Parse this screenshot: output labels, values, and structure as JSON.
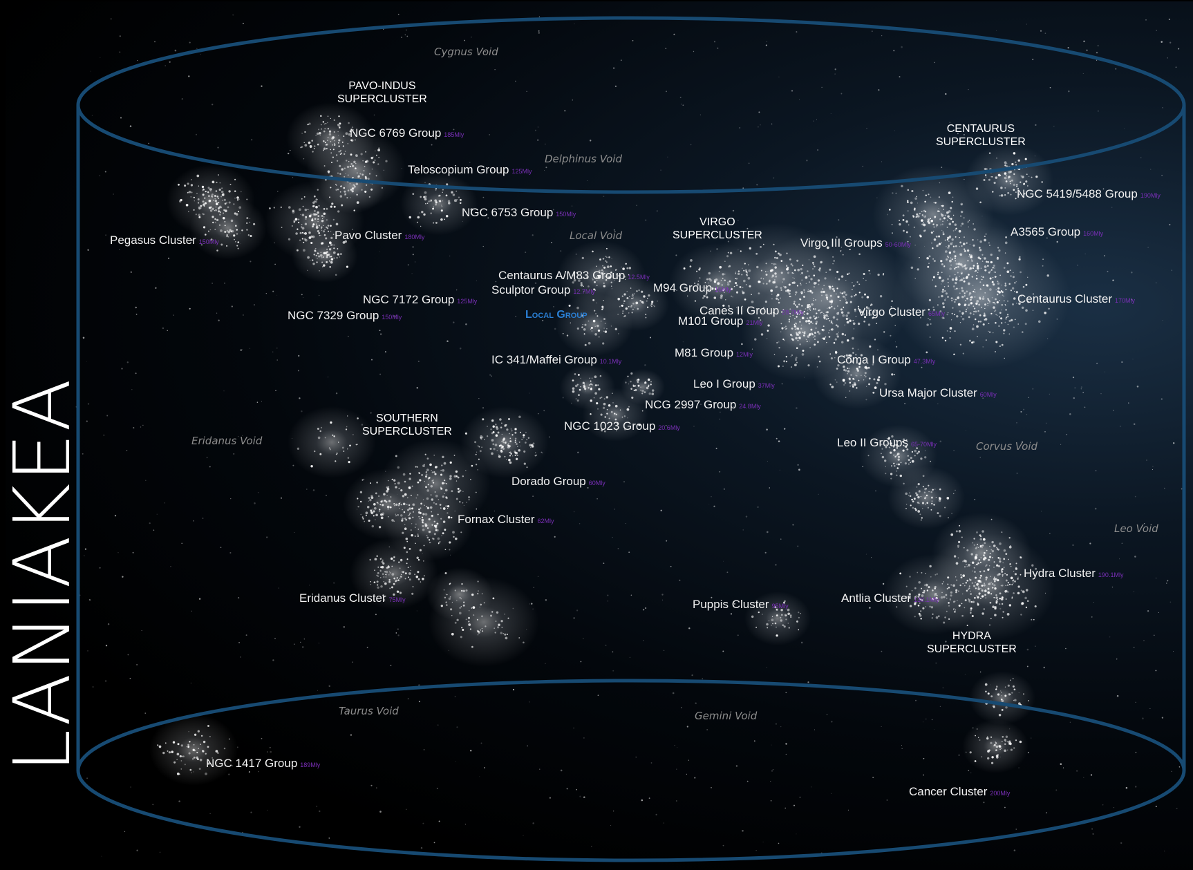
{
  "title": "LANIAKEA",
  "colors": {
    "frame": "#174a72",
    "label": "#f2f2f2",
    "distance": "#7a2fb8",
    "void": "#8c8c8c",
    "local_group": "#2a7fd4"
  },
  "superclusters": {
    "pavo_indus": "PAVO-INDUS\nSUPERCLUSTER",
    "centaurus": "CENTAURUS\nSUPERCLUSTER",
    "virgo": "VIRGO\nSUPERCLUSTER",
    "southern": "SOUTHERN\nSUPERCLUSTER",
    "hydra": "HYDRA\nSUPERCLUSTER"
  },
  "voids": {
    "cygnus": "Cygnus Void",
    "delphinus": "Delphinus Void",
    "local": "Local Void",
    "eridanus": "Eridanus Void",
    "corvus": "Corvus Void",
    "leo": "Leo Void",
    "taurus": "Taurus Void",
    "gemini": "Gemini Void"
  },
  "local_group": "Local Group",
  "groups": {
    "ngc6769": {
      "name": "NGC 6769 Group",
      "dist": "185Mly"
    },
    "telescopium": {
      "name": "Teloscopium Group",
      "dist": "125Mly"
    },
    "ngc6753": {
      "name": "NGC 6753 Group",
      "dist": "150Mly"
    },
    "pegasus": {
      "name": "Pegasus Cluster",
      "dist": "150Mly"
    },
    "pavo": {
      "name": "Pavo Cluster",
      "dist": "180Mly"
    },
    "centaurus_a": {
      "name": "Centaurus A/M83 Group",
      "dist": "12.5Mly"
    },
    "sculptor": {
      "name": "Sculptor Group",
      "dist": "12.7Mly"
    },
    "ngc7172": {
      "name": "NGC 7172 Group",
      "dist": "125Mly"
    },
    "ngc7329": {
      "name": "NGC 7329 Group",
      "dist": "150Mly"
    },
    "m94": {
      "name": "M94 Group",
      "dist": "16Mly"
    },
    "canes_ii": {
      "name": "Canes II Group",
      "dist": "28.7Mly"
    },
    "m101": {
      "name": "M101 Group",
      "dist": "21Mly"
    },
    "virgo_iii": {
      "name": "Virgo III Groups",
      "dist": "50-60Mly"
    },
    "virgo_cluster": {
      "name": "Virgo Cluster",
      "dist": "65Mly"
    },
    "ngc5419": {
      "name": "NGC 5419/5488 Group",
      "dist": "190Mly"
    },
    "a3565": {
      "name": "A3565 Group",
      "dist": "160Mly"
    },
    "centaurus_cluster": {
      "name": "Centaurus Cluster",
      "dist": "170Mly"
    },
    "ic341": {
      "name": "IC 341/Maffei Group",
      "dist": "10.1Mly"
    },
    "m81": {
      "name": "M81 Group",
      "dist": "12Mly"
    },
    "coma_i": {
      "name": "Coma I Group",
      "dist": "47.3Mly"
    },
    "leo_i": {
      "name": "Leo I Group",
      "dist": "37Mly"
    },
    "ngc2997": {
      "name": "NCG 2997 Group",
      "dist": "24.8Mly"
    },
    "ursa_major": {
      "name": "Ursa Major Cluster",
      "dist": "60Mly"
    },
    "ngc1023": {
      "name": "NGC 1023 Group",
      "dist": "20.6Mly"
    },
    "leo_ii": {
      "name": "Leo II Groups",
      "dist": "65-70Mly"
    },
    "dorado": {
      "name": "Dorado Group",
      "dist": "60Mly"
    },
    "fornax": {
      "name": "Fornax Cluster",
      "dist": "62Mly"
    },
    "hydra_cluster": {
      "name": "Hydra Cluster",
      "dist": "190.1Mly"
    },
    "eridanus_cluster": {
      "name": "Eridanus Cluster",
      "dist": "75Mly"
    },
    "puppis": {
      "name": "Puppis Cluster",
      "dist": "95Mly"
    },
    "antlia": {
      "name": "Antlia Cluster",
      "dist": "130.1Mly"
    },
    "ngc1417": {
      "name": "NGC 1417 Group",
      "dist": "189Mly"
    },
    "cancer": {
      "name": "Cancer Cluster",
      "dist": "200Mly"
    }
  }
}
